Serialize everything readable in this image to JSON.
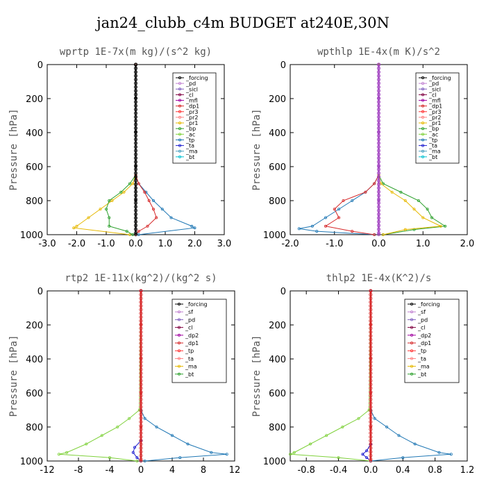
{
  "figure": {
    "title": "jan24_clubb_c4m  BUDGET at240E,30N"
  },
  "chart_data": [
    {
      "type": "line",
      "title": "wprtp  1E-7x(m kg)/(s^2 kg)",
      "ylabel": "Pressure [hPa]",
      "xlim": [
        -3,
        3
      ],
      "ylim": [
        1000,
        0
      ],
      "xticks": [
        "-3.0",
        "-2.0",
        "-1.0",
        "0.0",
        "1.0",
        "2.0",
        "3.0"
      ],
      "xtick_values": [
        -3,
        -2,
        -1,
        0,
        1,
        2,
        3
      ],
      "yticks": [
        "0",
        "200",
        "400",
        "600",
        "800",
        "1000"
      ],
      "ytick_values": [
        0,
        200,
        400,
        600,
        800,
        1000
      ],
      "legend": "top-right",
      "legend_entries": [
        "_forcing",
        "_pd",
        "_sicl",
        "_cl",
        "_mfl",
        "_dp1",
        "_pr3",
        "_pr2",
        "_pr1",
        "_bp",
        "_ac",
        "_tp",
        "_ta",
        "_ma",
        "_bt"
      ],
      "series": [
        {
          "name": "_tp",
          "color": "#1f77b4",
          "p": [
            0,
            650,
            700,
            750,
            800,
            850,
            900,
            950,
            960,
            1000
          ],
          "v": [
            0,
            0,
            0.1,
            0.35,
            0.6,
            0.9,
            1.2,
            1.9,
            2.0,
            0.1
          ]
        },
        {
          "name": "_pr1",
          "color": "#e6b800",
          "p": [
            0,
            650,
            700,
            750,
            800,
            850,
            900,
            950,
            960,
            1000
          ],
          "v": [
            0,
            0,
            -0.1,
            -0.4,
            -0.8,
            -1.2,
            -1.6,
            -2.0,
            -2.1,
            -0.2
          ]
        },
        {
          "name": "_ac",
          "color": "#2ca02c",
          "p": [
            0,
            650,
            700,
            750,
            800,
            850,
            900,
            950,
            980,
            1000
          ],
          "v": [
            0,
            0,
            -0.2,
            -0.5,
            -0.9,
            -1.0,
            -0.9,
            -0.9,
            -0.3,
            -0.1
          ]
        },
        {
          "name": "_dp1",
          "color": "#d62728",
          "p": [
            0,
            650,
            700,
            750,
            800,
            850,
            900,
            950,
            980,
            1000
          ],
          "v": [
            0,
            0,
            0.1,
            0.3,
            0.45,
            0.6,
            0.7,
            0.4,
            0.1,
            0
          ]
        },
        {
          "name": "_forcing",
          "color": "#000000",
          "p": [
            0,
            200,
            400,
            600,
            800,
            1000
          ],
          "v": [
            0,
            0,
            0,
            0,
            0,
            0
          ]
        }
      ]
    },
    {
      "type": "line",
      "title": "wpthlp  1E-4x(m K)/s^2",
      "ylabel": "Pressure [hPa]",
      "xlim": [
        -2,
        2
      ],
      "ylim": [
        1000,
        0
      ],
      "xticks": [
        "-2.0",
        "-1.0",
        "0.0",
        "1.0",
        "2.0"
      ],
      "xtick_values": [
        -2,
        -1,
        0,
        1,
        2
      ],
      "yticks": [
        "0",
        "200",
        "400",
        "600",
        "800",
        "1000"
      ],
      "ytick_values": [
        0,
        200,
        400,
        600,
        800,
        1000
      ],
      "legend": "top-right",
      "legend_entries": [
        "_forcing",
        "_pd",
        "_sicl",
        "_cl",
        "_mfl",
        "_dp1",
        "_pr3",
        "_pr2",
        "_pr1",
        "_bp",
        "_ac",
        "_tp",
        "_ta",
        "_ma",
        "_bt"
      ],
      "series": [
        {
          "name": "_tp",
          "color": "#1f77b4",
          "p": [
            0,
            650,
            700,
            750,
            800,
            850,
            900,
            950,
            965,
            980,
            1000
          ],
          "v": [
            0,
            0,
            -0.1,
            -0.3,
            -0.6,
            -0.9,
            -1.2,
            -1.5,
            -1.8,
            -1.4,
            -0.1
          ]
        },
        {
          "name": "_dp1",
          "color": "#d62728",
          "p": [
            0,
            650,
            700,
            750,
            800,
            850,
            900,
            950,
            980,
            1000
          ],
          "v": [
            0,
            0,
            -0.1,
            -0.3,
            -0.8,
            -1.0,
            -0.9,
            -1.2,
            -0.6,
            -0.1
          ]
        },
        {
          "name": "_ac",
          "color": "#2ca02c",
          "p": [
            0,
            650,
            700,
            750,
            800,
            850,
            900,
            950,
            970,
            1000
          ],
          "v": [
            0,
            0,
            0.1,
            0.5,
            0.9,
            1.1,
            1.2,
            1.5,
            0.8,
            0.1
          ]
        },
        {
          "name": "_pr1",
          "color": "#e6b800",
          "p": [
            0,
            650,
            700,
            750,
            800,
            850,
            900,
            950,
            970,
            1000
          ],
          "v": [
            0,
            0,
            0.05,
            0.3,
            0.6,
            0.8,
            1.0,
            1.4,
            0.6,
            0.1
          ]
        },
        {
          "name": "_forcing",
          "color": "#a040c0",
          "p": [
            0,
            200,
            400,
            600,
            800,
            1000
          ],
          "v": [
            0,
            0,
            0,
            0,
            0,
            0
          ]
        }
      ]
    },
    {
      "type": "line",
      "title": "rtp2  1E-11x(kg^2)/(kg^2 s)",
      "ylabel": "Pressure [hPa]",
      "xlim": [
        -12,
        12
      ],
      "ylim": [
        1000,
        0
      ],
      "xticks": [
        "-12",
        "-8",
        "-4",
        "0",
        "4",
        "8",
        "12"
      ],
      "xtick_values": [
        -12,
        -8,
        -4,
        0,
        4,
        8,
        12
      ],
      "yticks": [
        "0",
        "200",
        "400",
        "600",
        "800",
        "1000"
      ],
      "ytick_values": [
        0,
        200,
        400,
        600,
        800,
        1000
      ],
      "legend": "top-right",
      "legend_entries": [
        "_forcing",
        "_sf",
        "_pd",
        "_cl",
        "_dp2",
        "_dp1",
        "_tp",
        "_ta",
        "_ma",
        "_bt"
      ],
      "series": [
        {
          "name": "_tp",
          "color": "#1f77b4",
          "p": [
            0,
            700,
            750,
            800,
            850,
            900,
            950,
            960,
            980,
            1000
          ],
          "v": [
            0,
            0,
            0.5,
            2.0,
            4.0,
            6.0,
            9.0,
            11.0,
            5.0,
            0.5
          ]
        },
        {
          "name": "_dp1",
          "color": "#7fd13b",
          "p": [
            0,
            700,
            750,
            800,
            850,
            900,
            950,
            960,
            980,
            1000
          ],
          "v": [
            0,
            -0.2,
            -1.5,
            -3.0,
            -5.0,
            -7.0,
            -9.5,
            -10.5,
            -4.0,
            -0.5
          ]
        },
        {
          "name": "_ta",
          "color": "#1f1fd0",
          "p": [
            0,
            880,
            920,
            950,
            980,
            1000
          ],
          "v": [
            0,
            0,
            -0.8,
            -1.0,
            -0.5,
            0
          ]
        },
        {
          "name": "_forcing",
          "color": "#d62728",
          "p": [
            0,
            200,
            400,
            600,
            800,
            1000
          ],
          "v": [
            0,
            0,
            0,
            0,
            0,
            0
          ]
        }
      ]
    },
    {
      "type": "line",
      "title": "thlp2  1E-4x(K^2)/s",
      "ylabel": "Pressure [hPa]",
      "xlim": [
        -1,
        1.2
      ],
      "ylim": [
        1000,
        0
      ],
      "xticks": [
        "-0.8",
        "-0.4",
        "0.0",
        "0.4",
        "0.8",
        "1.2"
      ],
      "xtick_values": [
        -0.8,
        -0.4,
        0,
        0.4,
        0.8,
        1.2
      ],
      "yticks": [
        "0",
        "200",
        "400",
        "600",
        "800",
        "1000"
      ],
      "ytick_values": [
        0,
        200,
        400,
        600,
        800,
        1000
      ],
      "legend": "top-right",
      "legend_entries": [
        "_forcing",
        "_sf",
        "_pd",
        "_cl",
        "_dp2",
        "_dp1",
        "_tp",
        "_ta",
        "_ma",
        "_bt"
      ],
      "series": [
        {
          "name": "_tp",
          "color": "#1f77b4",
          "p": [
            0,
            700,
            750,
            800,
            850,
            900,
            950,
            960,
            980,
            1000
          ],
          "v": [
            0,
            0,
            0.05,
            0.2,
            0.35,
            0.55,
            0.85,
            1.0,
            0.4,
            0
          ]
        },
        {
          "name": "_dp1",
          "color": "#7fd13b",
          "p": [
            0,
            700,
            750,
            800,
            850,
            900,
            950,
            960,
            980,
            1000
          ],
          "v": [
            0,
            -0.02,
            -0.15,
            -0.35,
            -0.55,
            -0.75,
            -0.95,
            -1.0,
            -0.4,
            0
          ]
        },
        {
          "name": "_ta",
          "color": "#1f1fd0",
          "p": [
            0,
            900,
            940,
            960,
            980,
            1000
          ],
          "v": [
            0,
            0,
            -0.05,
            -0.1,
            -0.05,
            0
          ]
        },
        {
          "name": "_forcing",
          "color": "#d62728",
          "p": [
            0,
            200,
            400,
            600,
            800,
            1000
          ],
          "v": [
            0,
            0,
            0,
            0,
            0,
            0
          ]
        }
      ]
    }
  ]
}
